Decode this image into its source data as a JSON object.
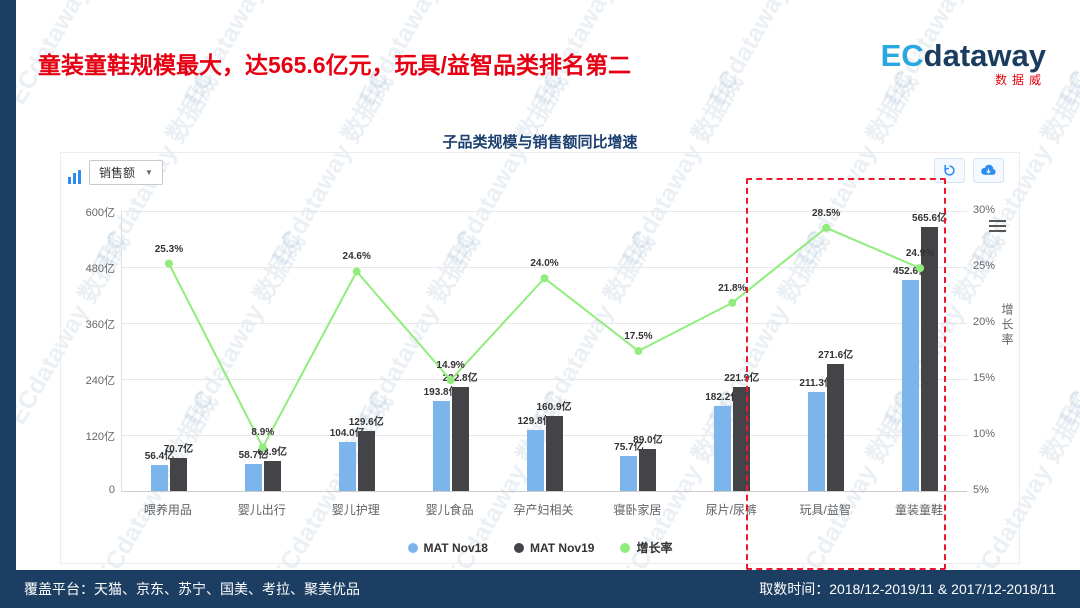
{
  "header": {
    "title": "童装童鞋规模最大，达565.6亿元，玩具/益智品类排名第二"
  },
  "logo": {
    "ec": "EC",
    "dataway": "dataway",
    "sub": "数据威"
  },
  "watermark": {
    "text": "ECdataway 数据威"
  },
  "toolbar": {
    "metric_label": "销售额",
    "caret": "▼"
  },
  "chart_data": {
    "type": "bar",
    "title": "子品类规模与销售额同比增速",
    "categories": [
      "喂养用品",
      "婴儿出行",
      "婴儿护理",
      "婴儿食品",
      "孕产妇相关",
      "寝卧家居",
      "尿片/尿裤",
      "玩具/益智",
      "童装童鞋"
    ],
    "series": [
      {
        "name": "MAT Nov18",
        "type": "bar",
        "color": "#7cb5ec",
        "unit": "亿",
        "values": [
          56.4,
          58.7,
          104.0,
          193.8,
          129.8,
          75.7,
          182.2,
          211.3,
          452.6
        ]
      },
      {
        "name": "MAT Nov19",
        "type": "bar",
        "color": "#434348",
        "unit": "亿",
        "values": [
          70.7,
          63.9,
          129.6,
          222.8,
          160.9,
          89.0,
          221.9,
          271.6,
          565.6
        ]
      },
      {
        "name": "增长率",
        "type": "line",
        "color": "#90ed7d",
        "unit": "%",
        "values": [
          25.3,
          8.9,
          24.6,
          14.9,
          24.0,
          17.5,
          21.8,
          28.5,
          24.9
        ]
      }
    ],
    "left_axis": {
      "min": 0,
      "max": 600,
      "ticks": [
        "600亿",
        "480亿",
        "360亿",
        "240亿",
        "120亿",
        "0"
      ]
    },
    "right_axis": {
      "min": 5,
      "max": 30,
      "ticks": [
        "30%",
        "25%",
        "20%",
        "15%",
        "10%",
        "5%"
      ],
      "label": "增长率"
    },
    "legend_position": "bottom",
    "grid": true,
    "highlight_categories": [
      "玩具/益智",
      "童装童鞋"
    ]
  },
  "footer": {
    "left": "覆盖平台：天猫、京东、苏宁、国美、考拉、聚美优品",
    "right": "取数时间：2018/12-2019/11 & 2017/12-2018/11"
  }
}
